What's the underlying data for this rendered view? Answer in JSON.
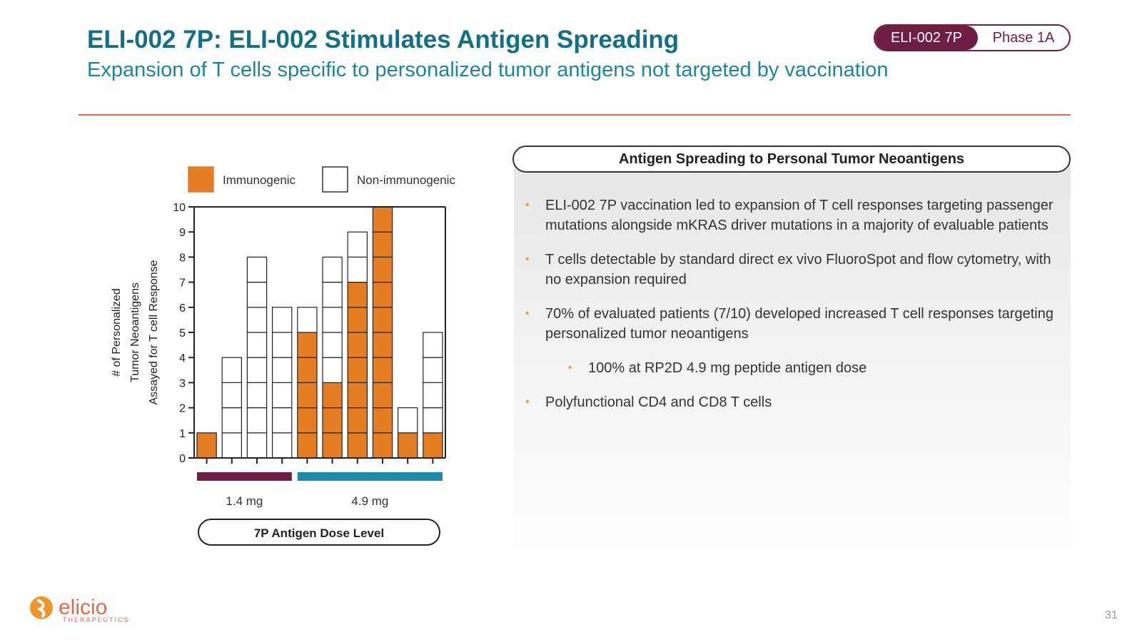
{
  "header": {
    "title": "ELI-002 7P: ELI-002 Stimulates Antigen Spreading",
    "subtitle": "Expansion of T cells specific to personalized tumor antigens not targeted by vaccination",
    "badge_left": "ELI-002 7P",
    "badge_right": "Phase 1A"
  },
  "panel": {
    "header": "Antigen Spreading to Personal Tumor Neoantigens",
    "bullets": [
      {
        "text": "ELI-002 7P vaccination led to expansion of T cell responses targeting passenger mutations alongside mKRAS driver mutations in a majority of evaluable patients",
        "level": 0
      },
      {
        "text": "T cells detectable by standard direct ex vivo FluoroSpot and flow cytometry, with no expansion required",
        "level": 0
      },
      {
        "text": "70% of evaluated patients (7/10) developed increased T cell responses targeting personalized tumor neoantigens",
        "level": 0
      },
      {
        "text": "100% at RP2D 4.9 mg peptide antigen dose",
        "level": 1
      },
      {
        "text": "Polyfunctional CD4 and CD8 T cells",
        "level": 0
      }
    ]
  },
  "chart_data": {
    "type": "bar",
    "stacked": true,
    "ylabel_lines": [
      "# of Personalized",
      "Tumor Neoantigens",
      "Assayed for T cell Response"
    ],
    "ylim": [
      0,
      10
    ],
    "yticks": [
      "0",
      "1",
      "2",
      "3",
      "4",
      "5",
      "6",
      "7",
      "8",
      "9",
      "10"
    ],
    "series": [
      {
        "name": "Immunogenic",
        "color": "#e57e22",
        "values": [
          1,
          0,
          0,
          0,
          5,
          3,
          7,
          10,
          1,
          1
        ]
      },
      {
        "name": "Non-immunogenic",
        "color": "#ffffff",
        "values": [
          0,
          4,
          8,
          6,
          1,
          5,
          2,
          0,
          1,
          4
        ]
      }
    ],
    "dose_groups": [
      {
        "label": "1.4 mg",
        "bars": [
          0,
          3
        ],
        "color": "#6e1e44"
      },
      {
        "label": "4.9 mg",
        "bars": [
          4,
          9
        ],
        "color": "#1a8aab"
      }
    ],
    "dose_axis_label": "7P Antigen Dose Level",
    "grid": false,
    "legend_position": "top"
  },
  "footer": {
    "logo_text": "elicio",
    "logo_subtext": "THERAPEUTICS",
    "page_number": "31"
  }
}
